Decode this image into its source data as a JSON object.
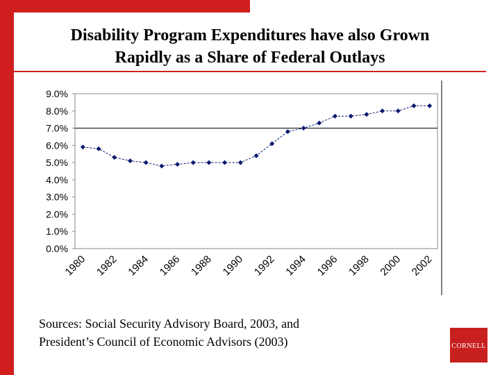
{
  "chart_data": {
    "type": "line",
    "title": "Disability Program Expenditures have  also Grown",
    "subtitle": "Rapidly as a Share of Federal Outlays",
    "categories": [
      "1980",
      null,
      "1982",
      null,
      "1984",
      null,
      "1986",
      null,
      "1988",
      null,
      "1990",
      null,
      "1992",
      null,
      "1994",
      null,
      "1996",
      null,
      "1998",
      null,
      "2000",
      null,
      "2002"
    ],
    "values": [
      5.9,
      5.8,
      5.3,
      5.1,
      5.0,
      4.8,
      4.9,
      5.0,
      5.0,
      5.0,
      5.0,
      5.4,
      6.1,
      6.8,
      7.0,
      7.3,
      7.7,
      7.7,
      7.8,
      8.0,
      8.0,
      8.3,
      8.3
    ],
    "color": "#0a1a6e",
    "ylim": [
      0,
      9
    ],
    "yticks": [
      {
        "value": 0,
        "label": "0.0%"
      },
      {
        "value": 1,
        "label": "1.0%"
      },
      {
        "value": 2,
        "label": "2.0%"
      },
      {
        "value": 3,
        "label": "3.0%"
      },
      {
        "value": 4,
        "label": "4.0%"
      },
      {
        "value": 5,
        "label": "5.0%"
      },
      {
        "value": 6,
        "label": "6.0%"
      },
      {
        "value": 7,
        "label": "7.0%"
      },
      {
        "value": 8,
        "label": "8.0%"
      },
      {
        "value": 9,
        "label": "9.0%"
      }
    ],
    "reference_line": 7,
    "source": [
      "Sources: Social Security Advisory Board, 2003, and",
      "President’s Council of Economic Advisors (2003)"
    ],
    "logo": "Cornell"
  }
}
